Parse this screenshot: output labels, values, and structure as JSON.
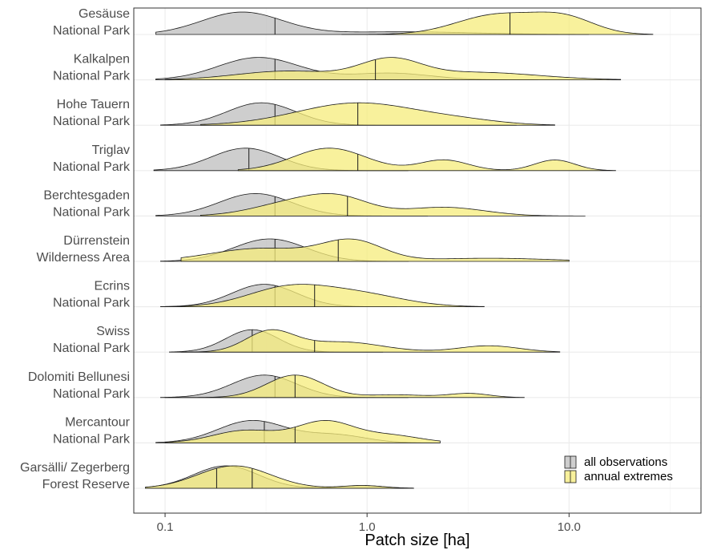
{
  "chart_data": {
    "type": "ridgeline-density",
    "xlabel": "Patch size [ha]",
    "xscale": "log10",
    "xlim": [
      0.07,
      45
    ],
    "xticks": [
      {
        "value": 0.1,
        "label": "0.1"
      },
      {
        "value": 1,
        "label": "1.0"
      },
      {
        "value": 10,
        "label": "10.0"
      }
    ],
    "grid": true,
    "legend_position": "bottom-right",
    "series": [
      {
        "key": "all",
        "name": "all observations",
        "color": "#bebebe"
      },
      {
        "key": "ext",
        "name": "annual extremes",
        "color": "#f5ec7b"
      }
    ],
    "sites": [
      {
        "label": [
          "Gesäuse",
          "National Park"
        ],
        "all": {
          "min": 0.09,
          "max": 12.5,
          "median": 0.35,
          "peaks": [
            [
              0.24,
              1.0,
              0.2
            ],
            [
              1.5,
              0.12,
              0.35
            ]
          ]
        },
        "ext": {
          "min": 0.75,
          "max": 26,
          "median": 5.1,
          "peaks": [
            [
              4.4,
              1.0,
              0.2
            ],
            [
              9.5,
              0.8,
              0.15
            ]
          ]
        }
      },
      {
        "label": [
          "Kalkalpen",
          "National Park"
        ],
        "all": {
          "min": 0.09,
          "max": 7,
          "median": 0.35,
          "peaks": [
            [
              0.29,
              1.0,
              0.2
            ],
            [
              1.3,
              0.3,
              0.2
            ]
          ]
        },
        "ext": {
          "min": 0.1,
          "max": 18,
          "median": 1.1,
          "peaks": [
            [
              0.4,
              0.35,
              0.25
            ],
            [
              1.3,
              0.75,
              0.15
            ],
            [
              3.5,
              0.3,
              0.3
            ]
          ]
        }
      },
      {
        "label": [
          "Hohe Tauern",
          "National Park"
        ],
        "all": {
          "min": 0.095,
          "max": 5.5,
          "median": 0.35,
          "peaks": [
            [
              0.3,
              1.0,
              0.17
            ]
          ]
        },
        "ext": {
          "min": 0.15,
          "max": 8.5,
          "median": 0.9,
          "peaks": [
            [
              0.9,
              0.95,
              0.3
            ],
            [
              3.0,
              0.15,
              0.2
            ]
          ]
        }
      },
      {
        "label": [
          "Triglav",
          "National Park"
        ],
        "all": {
          "min": 0.088,
          "max": 1.6,
          "median": 0.26,
          "peaks": [
            [
              0.25,
              1.0,
              0.17
            ]
          ]
        },
        "ext": {
          "min": 0.23,
          "max": 17,
          "median": 0.9,
          "peaks": [
            [
              0.65,
              0.95,
              0.18
            ],
            [
              2.4,
              0.45,
              0.12
            ],
            [
              8.5,
              0.45,
              0.1
            ]
          ]
        }
      },
      {
        "label": [
          "Berchtesgaden",
          "National Park"
        ],
        "all": {
          "min": 0.09,
          "max": 2.0,
          "median": 0.35,
          "peaks": [
            [
              0.28,
              1.0,
              0.18
            ]
          ]
        },
        "ext": {
          "min": 0.15,
          "max": 12,
          "median": 0.8,
          "peaks": [
            [
              0.45,
              0.65,
              0.2
            ],
            [
              0.75,
              0.6,
              0.15
            ],
            [
              2.4,
              0.4,
              0.2
            ]
          ]
        }
      },
      {
        "label": [
          "Dürrenstein",
          "Wilderness Area"
        ],
        "all": {
          "min": 0.095,
          "max": 1.6,
          "median": 0.35,
          "peaks": [
            [
              0.33,
              1.0,
              0.18
            ]
          ]
        },
        "ext": {
          "min": 0.12,
          "max": 10,
          "median": 0.72,
          "peaks": [
            [
              0.3,
              0.5,
              0.25
            ],
            [
              0.85,
              0.75,
              0.15
            ],
            [
              4.0,
              0.12,
              0.3
            ]
          ]
        }
      },
      {
        "label": [
          "Ecrins",
          "National Park"
        ],
        "all": {
          "min": 0.095,
          "max": 1.4,
          "median": 0.35,
          "peaks": [
            [
              0.31,
              1.0,
              0.16
            ]
          ]
        },
        "ext": {
          "min": 0.1,
          "max": 3.8,
          "median": 0.55,
          "peaks": [
            [
              0.4,
              0.65,
              0.2
            ],
            [
              0.9,
              0.45,
              0.22
            ]
          ]
        }
      },
      {
        "label": [
          "Swiss",
          "National Park"
        ],
        "all": {
          "min": 0.105,
          "max": 1.2,
          "median": 0.27,
          "peaks": [
            [
              0.27,
              1.0,
              0.13
            ]
          ]
        },
        "ext": {
          "min": 0.12,
          "max": 9,
          "median": 0.55,
          "peaks": [
            [
              0.33,
              0.7,
              0.12
            ],
            [
              0.75,
              0.35,
              0.2
            ],
            [
              4.0,
              0.22,
              0.15
            ]
          ]
        }
      },
      {
        "label": [
          "Dolomiti Bellunesi",
          "National Park"
        ],
        "all": {
          "min": 0.095,
          "max": 1.6,
          "median": 0.35,
          "peaks": [
            [
              0.31,
              1.0,
              0.16
            ]
          ]
        },
        "ext": {
          "min": 0.1,
          "max": 6,
          "median": 0.44,
          "peaks": [
            [
              0.44,
              1.0,
              0.14
            ],
            [
              1.4,
              0.12,
              0.15
            ],
            [
              3.2,
              0.18,
              0.1
            ]
          ]
        }
      },
      {
        "label": [
          "Mercantour",
          "National Park"
        ],
        "all": {
          "min": 0.09,
          "max": 2.3,
          "median": 0.31,
          "peaks": [
            [
              0.27,
              1.0,
              0.17
            ],
            [
              0.7,
              0.35,
              0.15
            ]
          ]
        },
        "ext": {
          "min": 0.1,
          "max": 2.3,
          "median": 0.44,
          "peaks": [
            [
              0.25,
              0.5,
              0.16
            ],
            [
              0.62,
              0.85,
              0.14
            ],
            [
              1.3,
              0.3,
              0.15
            ]
          ]
        }
      },
      {
        "label": [
          "Garsälli/ Zegerberg",
          "Forest Reserve"
        ],
        "all": {
          "min": 0.08,
          "max": 1.7,
          "median": 0.27,
          "peaks": [
            [
              0.2,
              1.0,
              0.16
            ],
            [
              0.95,
              0.12,
              0.1
            ]
          ]
        },
        "ext": {
          "min": 0.08,
          "max": 1.7,
          "median": 0.18,
          "quantiles": [
            0.18,
            0.27
          ],
          "peaks": [
            [
              0.22,
              0.97,
              0.18
            ],
            [
              0.95,
              0.12,
              0.1
            ]
          ]
        }
      }
    ]
  }
}
